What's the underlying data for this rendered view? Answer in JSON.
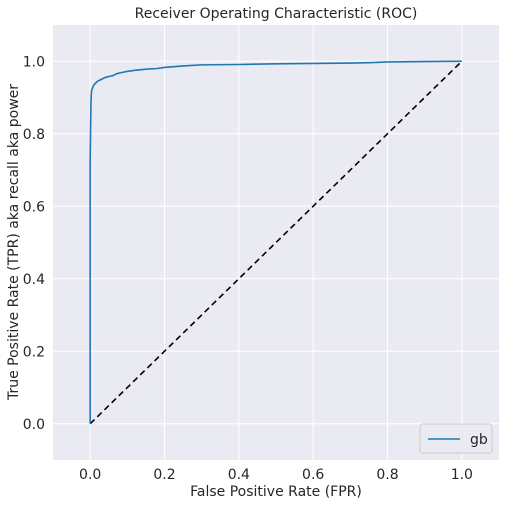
{
  "chart_data": {
    "type": "line",
    "title": "Receiver Operating Characteristic (ROC)",
    "xlabel": "False Positive Rate (FPR)",
    "ylabel": "True Positive Rate (TPR) aka recall aka power",
    "xlim": [
      -0.1,
      1.1
    ],
    "ylim": [
      -0.1,
      1.1
    ],
    "xticks": [
      "0.0",
      "0.2",
      "0.4",
      "0.6",
      "0.8",
      "1.0"
    ],
    "yticks": [
      "0.0",
      "0.2",
      "0.4",
      "0.6",
      "0.8",
      "1.0"
    ],
    "grid": true,
    "legend_position": "bottom-right",
    "colors": {
      "background": "#eaeaf2",
      "grid": "#ffffff",
      "series": "#1f77b4",
      "diagonal": "#000000"
    },
    "series": [
      {
        "name": "gb",
        "x": [
          0.0,
          0.0,
          0.002,
          0.003,
          0.004,
          0.006,
          0.008,
          0.01,
          0.015,
          0.02,
          0.03,
          0.04,
          0.05,
          0.06,
          0.07,
          0.08,
          0.1,
          0.12,
          0.15,
          0.18,
          0.2,
          0.25,
          0.3,
          0.4,
          0.5,
          0.6,
          0.7,
          0.75,
          0.8,
          0.9,
          1.0
        ],
        "y": [
          0.0,
          0.72,
          0.88,
          0.91,
          0.92,
          0.925,
          0.93,
          0.935,
          0.94,
          0.945,
          0.95,
          0.955,
          0.958,
          0.96,
          0.965,
          0.968,
          0.972,
          0.975,
          0.978,
          0.98,
          0.983,
          0.987,
          0.99,
          0.991,
          0.993,
          0.994,
          0.995,
          0.996,
          0.998,
          0.999,
          1.0
        ]
      }
    ],
    "reference_line": {
      "x": [
        0,
        1
      ],
      "y": [
        0,
        1
      ],
      "style": "dashed"
    }
  }
}
